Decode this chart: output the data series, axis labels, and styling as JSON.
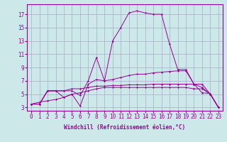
{
  "title": "",
  "xlabel": "Windchill (Refroidissement éolien,°C)",
  "ylabel": "",
  "bg_color": "#cce8e8",
  "grid_color": "#aaaacc",
  "line_color": "#990099",
  "xlim": [
    -0.5,
    23.5
  ],
  "ylim": [
    2.5,
    18.5
  ],
  "xticks": [
    0,
    1,
    2,
    3,
    4,
    5,
    6,
    7,
    8,
    9,
    10,
    11,
    12,
    13,
    14,
    15,
    16,
    17,
    18,
    19,
    20,
    21,
    22,
    23
  ],
  "yticks": [
    3,
    5,
    7,
    9,
    11,
    13,
    15,
    17
  ],
  "series": [
    [
      3.5,
      3.5,
      5.5,
      5.5,
      5.5,
      5.5,
      4.8,
      7.0,
      10.5,
      7.0,
      13.0,
      15.0,
      17.2,
      17.5,
      17.2,
      17.0,
      17.0,
      12.5,
      8.7,
      8.7,
      6.5,
      5.2,
      5.1,
      3.0
    ],
    [
      3.5,
      3.5,
      5.5,
      5.5,
      4.5,
      5.0,
      3.2,
      6.5,
      7.2,
      7.0,
      7.2,
      7.5,
      7.8,
      8.0,
      8.0,
      8.2,
      8.3,
      8.4,
      8.5,
      8.5,
      6.5,
      6.0,
      5.0,
      3.0
    ],
    [
      3.5,
      3.5,
      5.5,
      5.5,
      5.5,
      5.8,
      5.8,
      6.0,
      6.2,
      6.2,
      6.3,
      6.3,
      6.4,
      6.4,
      6.4,
      6.5,
      6.5,
      6.5,
      6.5,
      6.5,
      6.5,
      6.5,
      5.0,
      3.0
    ],
    [
      3.5,
      3.8,
      4.0,
      4.2,
      4.5,
      5.0,
      5.2,
      5.5,
      5.8,
      6.0,
      6.0,
      6.0,
      6.0,
      6.0,
      6.0,
      6.0,
      6.0,
      6.0,
      6.0,
      6.0,
      5.8,
      5.8,
      5.0,
      3.0
    ]
  ],
  "xlabel_fontsize": 5.5,
  "tick_fontsize": 5.5,
  "marker": "D",
  "markersize": 1.5,
  "linewidth": 0.7
}
